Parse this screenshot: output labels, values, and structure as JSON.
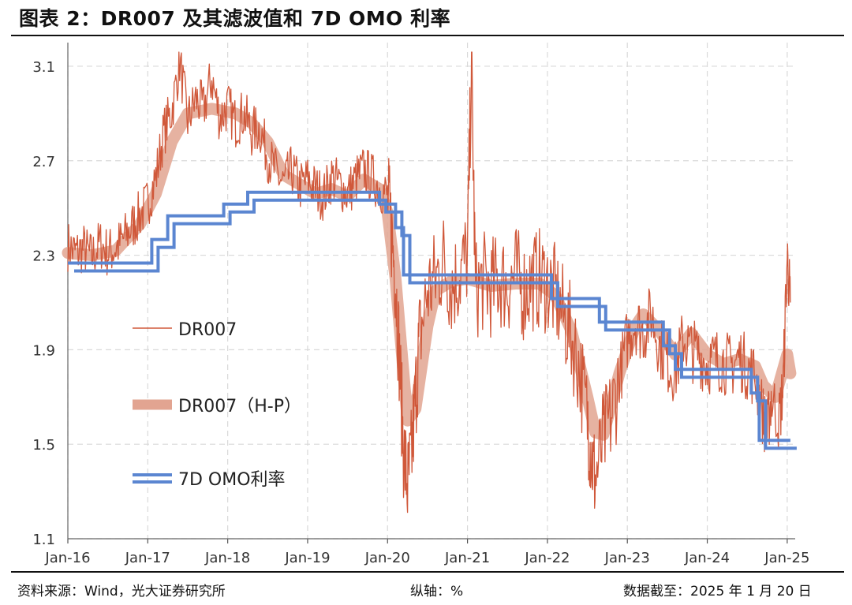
{
  "header": {
    "title": "图表 2：DR007 及其滤波值和 7D OMO 利率"
  },
  "footer": {
    "source": "资料来源：Wind，光大证券研究所",
    "axis_note": "纵轴：%",
    "date_note": "数据截至：2025 年 1 月 20 日"
  },
  "colors": {
    "dr007": "#d0583a",
    "hp": "#e2a491",
    "omo": "#5b86d1"
  },
  "chart_data": {
    "type": "line",
    "title": "图表 2：DR007 及其滤波值和 7D OMO 利率",
    "xlabel": "",
    "ylabel": "%",
    "ylim": [
      1.1,
      3.2
    ],
    "xlim": [
      2016.0,
      2025.1
    ],
    "yticks": [
      1.1,
      1.5,
      1.9,
      2.3,
      2.7,
      3.1
    ],
    "ytick_labels": [
      "1.1",
      "1.5",
      "1.9",
      "2.3",
      "2.7",
      "3.1"
    ],
    "xticks": [
      2016,
      2017,
      2018,
      2019,
      2020,
      2021,
      2022,
      2023,
      2024,
      2025
    ],
    "xtick_labels": [
      "Jan-16",
      "Jan-17",
      "Jan-18",
      "Jan-19",
      "Jan-20",
      "Jan-21",
      "Jan-22",
      "Jan-23",
      "Jan-24",
      "Jan-25"
    ],
    "grid": true,
    "legend_position": "left-center",
    "series": [
      {
        "name": "DR007",
        "style": "thin-line",
        "points": [
          [
            2016.0,
            2.34
          ],
          [
            2016.1,
            2.31
          ],
          [
            2016.2,
            2.33
          ],
          [
            2016.3,
            2.29
          ],
          [
            2016.4,
            2.35
          ],
          [
            2016.5,
            2.31
          ],
          [
            2016.6,
            2.33
          ],
          [
            2016.7,
            2.37
          ],
          [
            2016.8,
            2.42
          ],
          [
            2016.9,
            2.47
          ],
          [
            2017.0,
            2.52
          ],
          [
            2017.1,
            2.63
          ],
          [
            2017.2,
            2.82
          ],
          [
            2017.3,
            2.91
          ],
          [
            2017.4,
            3.12
          ],
          [
            2017.5,
            2.87
          ],
          [
            2017.6,
            2.96
          ],
          [
            2017.7,
            2.92
          ],
          [
            2017.8,
            3.05
          ],
          [
            2017.9,
            2.88
          ],
          [
            2018.0,
            2.93
          ],
          [
            2018.1,
            2.86
          ],
          [
            2018.2,
            2.9
          ],
          [
            2018.3,
            2.82
          ],
          [
            2018.4,
            2.84
          ],
          [
            2018.5,
            2.72
          ],
          [
            2018.6,
            2.65
          ],
          [
            2018.7,
            2.6
          ],
          [
            2018.8,
            2.66
          ],
          [
            2018.9,
            2.59
          ],
          [
            2019.0,
            2.62
          ],
          [
            2019.1,
            2.58
          ],
          [
            2019.2,
            2.55
          ],
          [
            2019.3,
            2.63
          ],
          [
            2019.4,
            2.6
          ],
          [
            2019.5,
            2.56
          ],
          [
            2019.6,
            2.62
          ],
          [
            2019.7,
            2.66
          ],
          [
            2019.8,
            2.63
          ],
          [
            2019.9,
            2.59
          ],
          [
            2020.0,
            2.55
          ],
          [
            2020.05,
            2.4
          ],
          [
            2020.1,
            2.2
          ],
          [
            2020.15,
            1.85
          ],
          [
            2020.2,
            1.48
          ],
          [
            2020.25,
            1.32
          ],
          [
            2020.3,
            1.45
          ],
          [
            2020.35,
            1.7
          ],
          [
            2020.4,
            1.95
          ],
          [
            2020.5,
            2.15
          ],
          [
            2020.6,
            2.2
          ],
          [
            2020.7,
            2.28
          ],
          [
            2020.8,
            2.17
          ],
          [
            2020.9,
            2.22
          ],
          [
            2021.0,
            2.3
          ],
          [
            2021.05,
            3.12
          ],
          [
            2021.1,
            2.15
          ],
          [
            2021.2,
            2.19
          ],
          [
            2021.3,
            2.16
          ],
          [
            2021.4,
            2.2
          ],
          [
            2021.5,
            2.17
          ],
          [
            2021.6,
            2.22
          ],
          [
            2021.7,
            2.15
          ],
          [
            2021.8,
            2.19
          ],
          [
            2021.9,
            2.2
          ],
          [
            2022.0,
            2.18
          ],
          [
            2022.1,
            2.13
          ],
          [
            2022.2,
            2.04
          ],
          [
            2022.3,
            1.96
          ],
          [
            2022.4,
            1.82
          ],
          [
            2022.5,
            1.62
          ],
          [
            2022.55,
            1.45
          ],
          [
            2022.6,
            1.35
          ],
          [
            2022.7,
            1.52
          ],
          [
            2022.8,
            1.62
          ],
          [
            2022.9,
            1.78
          ],
          [
            2023.0,
            1.95
          ],
          [
            2023.1,
            2.02
          ],
          [
            2023.2,
            1.97
          ],
          [
            2023.3,
            2.05
          ],
          [
            2023.4,
            1.92
          ],
          [
            2023.5,
            1.85
          ],
          [
            2023.6,
            1.8
          ],
          [
            2023.7,
            1.95
          ],
          [
            2023.8,
            1.9
          ],
          [
            2023.9,
            1.88
          ],
          [
            2024.0,
            1.84
          ],
          [
            2024.1,
            1.86
          ],
          [
            2024.2,
            1.85
          ],
          [
            2024.3,
            1.83
          ],
          [
            2024.4,
            1.87
          ],
          [
            2024.5,
            1.82
          ],
          [
            2024.6,
            1.79
          ],
          [
            2024.7,
            1.62
          ],
          [
            2024.75,
            1.55
          ],
          [
            2024.8,
            1.7
          ],
          [
            2024.9,
            1.6
          ],
          [
            2024.95,
            1.75
          ],
          [
            2025.0,
            2.3
          ],
          [
            2025.04,
            2.1
          ]
        ]
      },
      {
        "name": "DR007（H-P）",
        "style": "thick-band",
        "points": [
          [
            2016.0,
            2.31
          ],
          [
            2016.3,
            2.3
          ],
          [
            2016.6,
            2.32
          ],
          [
            2016.9,
            2.43
          ],
          [
            2017.1,
            2.56
          ],
          [
            2017.3,
            2.78
          ],
          [
            2017.5,
            2.9
          ],
          [
            2017.8,
            2.92
          ],
          [
            2018.1,
            2.9
          ],
          [
            2018.3,
            2.86
          ],
          [
            2018.5,
            2.78
          ],
          [
            2018.7,
            2.64
          ],
          [
            2018.9,
            2.6
          ],
          [
            2019.1,
            2.56
          ],
          [
            2019.3,
            2.58
          ],
          [
            2019.5,
            2.55
          ],
          [
            2019.7,
            2.62
          ],
          [
            2019.9,
            2.58
          ],
          [
            2020.0,
            2.48
          ],
          [
            2020.1,
            2.2
          ],
          [
            2020.2,
            1.8
          ],
          [
            2020.25,
            1.6
          ],
          [
            2020.35,
            1.65
          ],
          [
            2020.5,
            2.0
          ],
          [
            2020.6,
            2.15
          ],
          [
            2020.8,
            2.19
          ],
          [
            2021.0,
            2.2
          ],
          [
            2021.3,
            2.17
          ],
          [
            2021.6,
            2.18
          ],
          [
            2021.9,
            2.18
          ],
          [
            2022.1,
            2.13
          ],
          [
            2022.3,
            1.98
          ],
          [
            2022.5,
            1.7
          ],
          [
            2022.6,
            1.55
          ],
          [
            2022.7,
            1.54
          ],
          [
            2022.9,
            1.8
          ],
          [
            2023.1,
            2.0
          ],
          [
            2023.2,
            2.05
          ],
          [
            2023.4,
            1.98
          ],
          [
            2023.6,
            1.88
          ],
          [
            2023.8,
            1.97
          ],
          [
            2024.0,
            1.88
          ],
          [
            2024.2,
            1.84
          ],
          [
            2024.4,
            1.86
          ],
          [
            2024.6,
            1.83
          ],
          [
            2024.7,
            1.75
          ],
          [
            2024.85,
            1.7
          ],
          [
            2025.0,
            1.88
          ],
          [
            2025.04,
            1.8
          ]
        ]
      },
      {
        "name": "7D OMO利率",
        "style": "double-line",
        "steps": [
          [
            2016.0,
            2.25
          ],
          [
            2017.05,
            2.35
          ],
          [
            2017.25,
            2.45
          ],
          [
            2017.95,
            2.5
          ],
          [
            2018.25,
            2.55
          ],
          [
            2019.9,
            2.5
          ],
          [
            2020.1,
            2.4
          ],
          [
            2020.2,
            2.2
          ],
          [
            2022.05,
            2.1
          ],
          [
            2022.65,
            2.0
          ],
          [
            2023.45,
            1.9
          ],
          [
            2023.6,
            1.8
          ],
          [
            2024.55,
            1.7
          ],
          [
            2024.65,
            1.5
          ],
          [
            2025.04,
            1.5
          ]
        ]
      }
    ]
  }
}
